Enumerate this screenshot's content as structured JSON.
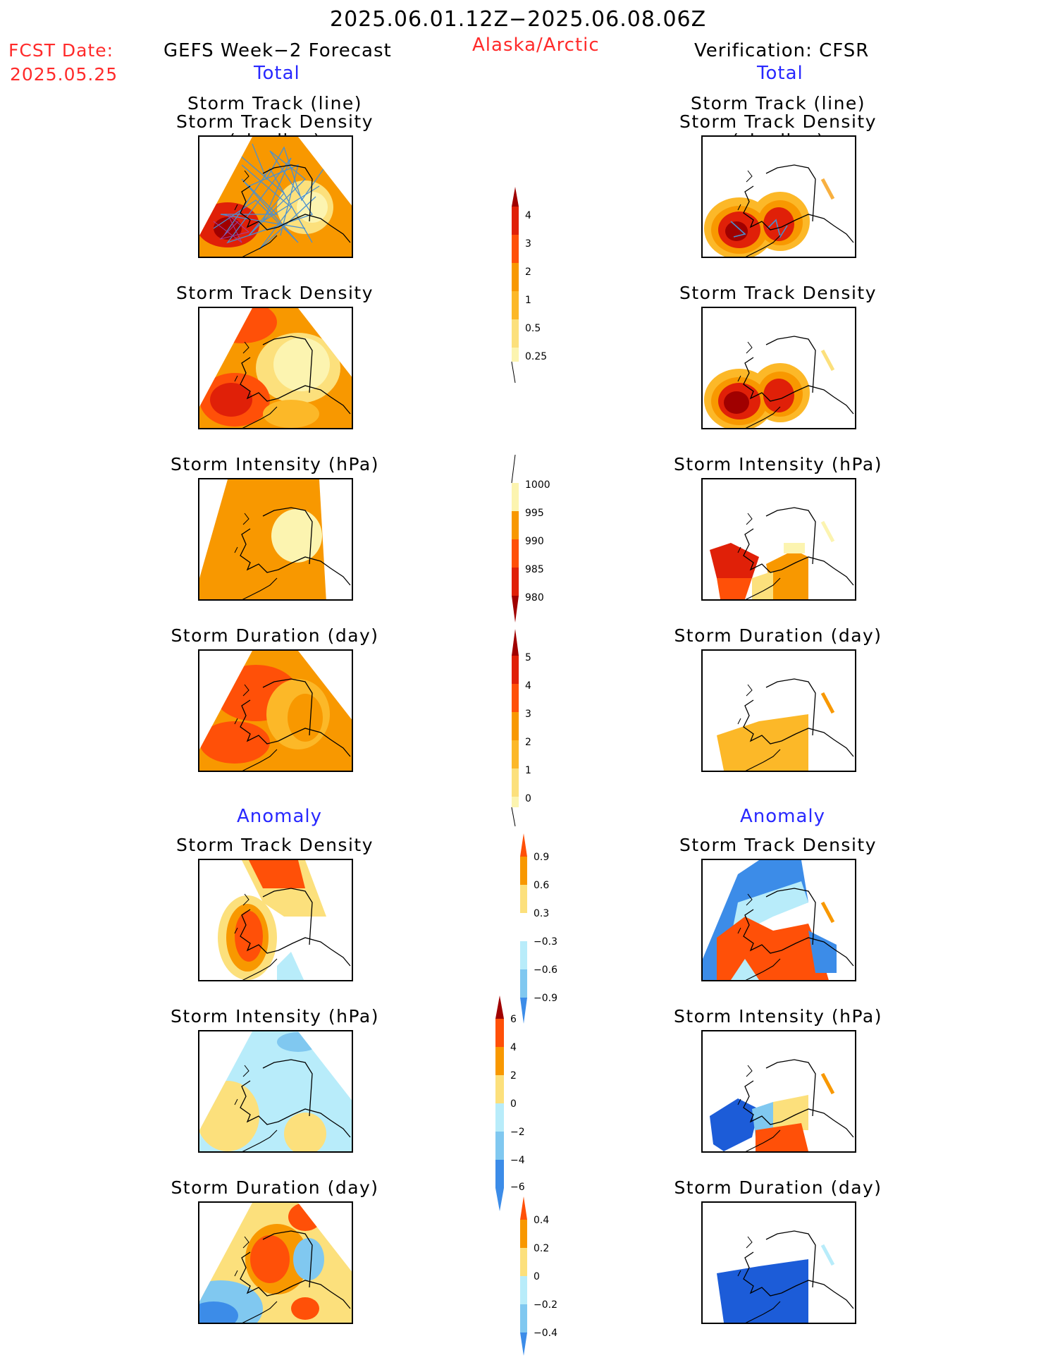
{
  "header": {
    "date_range": "2025.06.01.12Z−2025.06.08.06Z",
    "fcst_label": "FCST Date:",
    "fcst_date": "2025.05.25",
    "forecast_title": "GEFS Week−2 Forecast",
    "region": "Alaska/Arctic",
    "verification_title": "Verification: CFSR"
  },
  "sections": {
    "total": "Total",
    "anomaly": "Anomaly"
  },
  "panel_titles": {
    "track_line": "Storm Track (line)",
    "track_density_shading": "Storm Track Density (shading)",
    "track_density": "Storm Track Density",
    "intensity": "Storm Intensity (hPa)",
    "duration": "Storm Duration (day)"
  },
  "colorbars": {
    "total_density": [
      "4",
      "3",
      "2",
      "1",
      "0.5",
      "0.25"
    ],
    "total_intensity": [
      "1000",
      "995",
      "990",
      "985",
      "980"
    ],
    "total_duration": [
      "5",
      "4",
      "3",
      "2",
      "1",
      "0"
    ],
    "anom_density": [
      "0.9",
      "0.6",
      "0.3",
      "−0.3",
      "−0.6",
      "−0.9"
    ],
    "anom_intensity": [
      "6",
      "4",
      "2",
      "0",
      "−2",
      "−4",
      "−6"
    ],
    "anom_duration": [
      "0.4",
      "0.2",
      "0",
      "−0.2",
      "−0.4"
    ]
  },
  "colors": {
    "dark_red": "#a00000",
    "red": "#e02008",
    "red_orange": "#ff5008",
    "orange": "#f89800",
    "light_orange": "#fcb828",
    "yellow": "#fce07c",
    "pale_yellow": "#fcf4b0",
    "light_blue": "#b8ecfa",
    "mid_blue": "#80c8f0",
    "blue": "#3c8ce8",
    "dark_blue": "#1c5cd8",
    "track_line": "#4a90d0",
    "text_red": "#ff2a2a",
    "text_blue": "#2828ff"
  }
}
